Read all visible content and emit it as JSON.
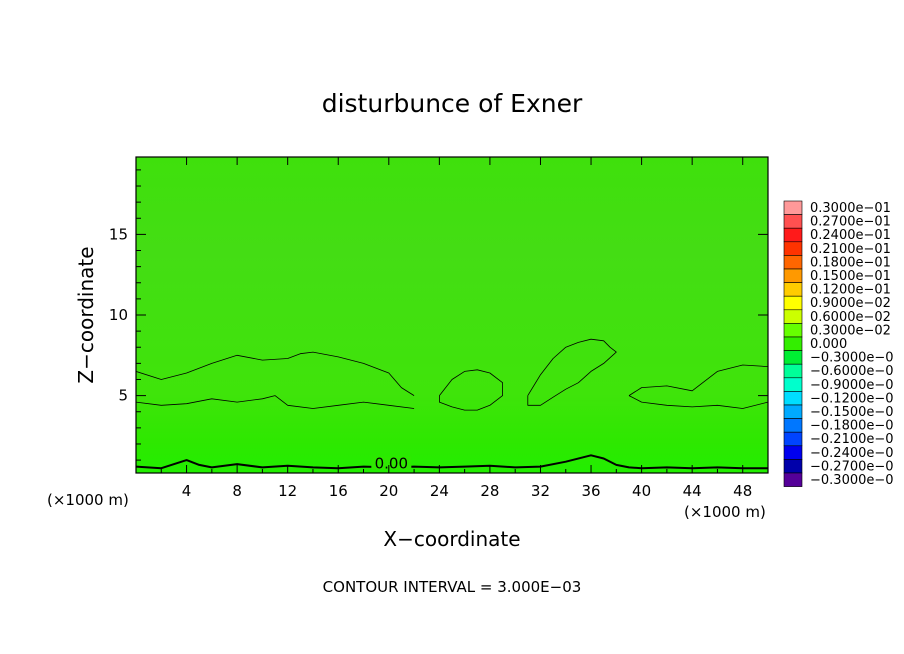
{
  "chart_data": {
    "type": "contour",
    "title": "disturbunce of Exner",
    "xlabel": "X−coordinate",
    "ylabel": "Z−coordinate",
    "x_unit_label": "(×1000 m)",
    "y_unit_label": "(×1000 m)",
    "x_ticks": [
      4,
      8,
      12,
      16,
      20,
      24,
      28,
      32,
      36,
      40,
      44,
      48
    ],
    "y_ticks": [
      5,
      10,
      15
    ],
    "xlim": [
      0,
      50
    ],
    "ylim": [
      0.2,
      19.8
    ],
    "contour_interval_text": "CONTOUR INTERVAL = 3.000E−03",
    "zero_contour_label": "0.00",
    "field_background_color": "#33ee00",
    "colorbar": {
      "levels": [
        {
          "label": "0.3000e−01",
          "color": "#ff9999"
        },
        {
          "label": "0.2700e−01",
          "color": "#ff5050"
        },
        {
          "label": "0.2400e−01",
          "color": "#ff1a1a"
        },
        {
          "label": "0.2100e−01",
          "color": "#ff3300"
        },
        {
          "label": "0.1800e−01",
          "color": "#ff6600"
        },
        {
          "label": "0.1500e−01",
          "color": "#ff9900"
        },
        {
          "label": "0.1200e−01",
          "color": "#ffcc00"
        },
        {
          "label": "0.9000e−02",
          "color": "#ffff00"
        },
        {
          "label": "0.6000e−02",
          "color": "#ccff00"
        },
        {
          "label": "0.3000e−02",
          "color": "#66ff00"
        },
        {
          "label": "0.000",
          "color": "#33ee00"
        },
        {
          "label": "−0.3000e−0",
          "color": "#00ee33"
        },
        {
          "label": "−0.6000e−0",
          "color": "#00ff99"
        },
        {
          "label": "−0.9000e−0",
          "color": "#00ffcc"
        },
        {
          "label": "−0.1200e−0",
          "color": "#00ddff"
        },
        {
          "label": "−0.1500e−0",
          "color": "#00aaff"
        },
        {
          "label": "−0.1800e−0",
          "color": "#0077ff"
        },
        {
          "label": "−0.2100e−0",
          "color": "#0044ff"
        },
        {
          "label": "−0.2400e−0",
          "color": "#0000ee"
        },
        {
          "label": "−0.2700e−0",
          "color": "#0000aa"
        },
        {
          "label": "−0.3000e−0",
          "color": "#550099"
        }
      ]
    },
    "contours": [
      {
        "kind": "upper-band",
        "x": [
          0,
          2,
          4,
          6,
          8,
          10,
          12,
          13,
          14,
          16,
          18,
          20,
          21,
          22
        ],
        "z": [
          6.5,
          6.0,
          6.4,
          7.0,
          7.5,
          7.2,
          7.3,
          7.6,
          7.7,
          7.4,
          7.0,
          6.4,
          5.5,
          5.0
        ]
      },
      {
        "kind": "lower-band",
        "x": [
          0,
          2,
          4,
          6,
          8,
          10,
          11,
          12,
          14,
          16,
          18,
          20,
          22
        ],
        "z": [
          4.6,
          4.4,
          4.5,
          4.8,
          4.6,
          4.8,
          5.0,
          4.4,
          4.2,
          4.4,
          4.6,
          4.4,
          4.2
        ]
      },
      {
        "kind": "blob",
        "x": [
          24,
          25,
          26,
          27,
          28,
          29,
          29,
          28,
          27,
          26,
          25,
          24,
          24
        ],
        "z": [
          5.0,
          6.0,
          6.5,
          6.6,
          6.4,
          5.8,
          5.0,
          4.4,
          4.1,
          4.1,
          4.3,
          4.6,
          5.0
        ]
      },
      {
        "kind": "blob",
        "x": [
          31,
          32,
          33,
          34,
          35,
          36,
          37,
          37.5,
          38,
          37,
          36,
          35,
          34,
          33,
          32,
          31,
          31
        ],
        "z": [
          5.0,
          6.3,
          7.3,
          8.0,
          8.3,
          8.5,
          8.4,
          8.0,
          7.7,
          7.0,
          6.5,
          5.8,
          5.4,
          4.9,
          4.4,
          4.4,
          5.0
        ]
      },
      {
        "kind": "right-band",
        "x": [
          39,
          40,
          42,
          44,
          46,
          48,
          50,
          50,
          48,
          46,
          44,
          42,
          40,
          39
        ],
        "z": [
          5.0,
          5.5,
          5.6,
          5.3,
          6.5,
          6.9,
          6.8,
          4.6,
          4.2,
          4.4,
          4.3,
          4.4,
          4.6,
          5.0
        ]
      },
      {
        "kind": "zero-line",
        "x": [
          0,
          2,
          4,
          5,
          6,
          8,
          10,
          12,
          14,
          16,
          18,
          20,
          22,
          24,
          26,
          28,
          30,
          32,
          34,
          36,
          37,
          38,
          39,
          40,
          42,
          44,
          46,
          48,
          50
        ],
        "z": [
          0.6,
          0.5,
          1.0,
          0.7,
          0.55,
          0.75,
          0.55,
          0.65,
          0.55,
          0.5,
          0.6,
          0.55,
          0.6,
          0.55,
          0.6,
          0.65,
          0.55,
          0.6,
          0.9,
          1.3,
          1.1,
          0.7,
          0.55,
          0.5,
          0.55,
          0.5,
          0.55,
          0.5,
          0.5
        ]
      }
    ]
  }
}
